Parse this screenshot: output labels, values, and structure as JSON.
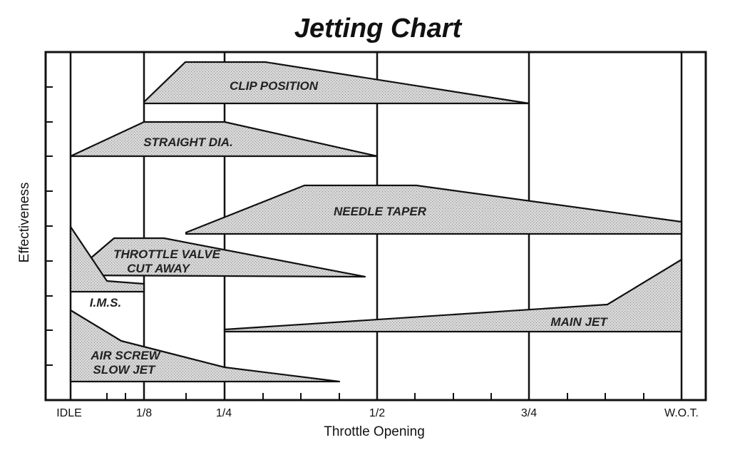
{
  "title": "Jetting Chart",
  "x_axis_label": "Throttle Opening",
  "y_axis_label": "Effectiveness",
  "x_tick_labels": [
    "IDLE",
    "1/8",
    "1/4",
    "1/2",
    "3/4",
    "W.O.T."
  ],
  "bands": [
    {
      "id": "clip-position",
      "label": [
        "CLIP POSITION"
      ]
    },
    {
      "id": "straight-dia",
      "label": [
        "STRAIGHT DIA."
      ]
    },
    {
      "id": "needle-taper",
      "label": [
        "NEEDLE TAPER"
      ]
    },
    {
      "id": "throttle-valve",
      "label": [
        "THROTTLE VALVE",
        "CUT AWAY"
      ]
    },
    {
      "id": "ims",
      "label": [
        "I.M.S."
      ]
    },
    {
      "id": "main-jet",
      "label": [
        "MAIN JET"
      ]
    },
    {
      "id": "air-screw",
      "label": [
        "AIR SCREW",
        "SLOW JET"
      ]
    }
  ],
  "colors": {
    "ink": "#111111",
    "band_fill": "#cfcfcf",
    "background": "#ffffff"
  }
}
